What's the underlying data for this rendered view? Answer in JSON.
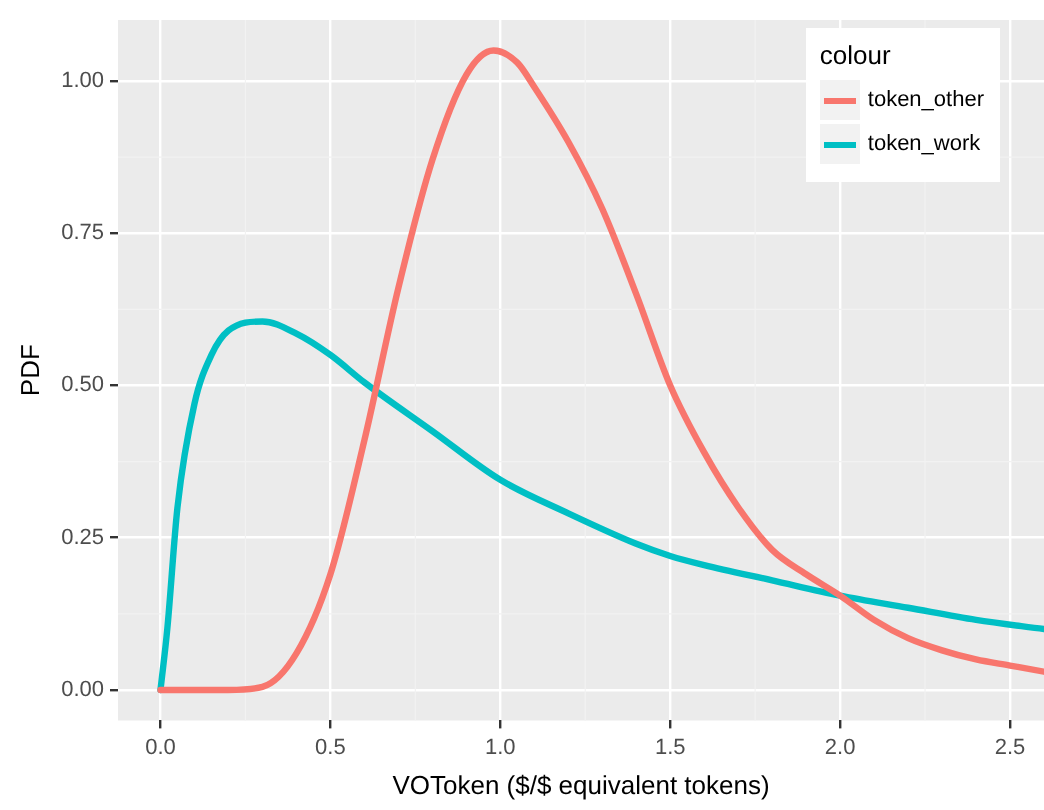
{
  "chart_data": {
    "type": "line",
    "xlabel": "VOToken ($/$ equivalent tokens)",
    "ylabel": "PDF",
    "legend_title": "colour",
    "legend": "top right",
    "grid": true,
    "marker": "none",
    "line_style": "solid",
    "xlim": [
      -0.125,
      2.6
    ],
    "ylim": [
      -0.05,
      1.1
    ],
    "xticks": [
      {
        "value": 0,
        "label": "0.0"
      },
      {
        "value": 0.5,
        "label": "0.5"
      },
      {
        "value": 1,
        "label": "1.0"
      },
      {
        "value": 1.5,
        "label": "1.5"
      },
      {
        "value": 2,
        "label": "2.0"
      },
      {
        "value": 2.5,
        "label": "2.5"
      }
    ],
    "yticks": [
      {
        "value": 0,
        "label": "0.00"
      },
      {
        "value": 0.25,
        "label": "0.25"
      },
      {
        "value": 0.5,
        "label": "0.50"
      },
      {
        "value": 0.75,
        "label": "0.75"
      },
      {
        "value": 1,
        "label": "1.00"
      }
    ],
    "series": [
      {
        "name": "token_other",
        "color": "#f8766d",
        "x": [
          0,
          0.2,
          0.3,
          0.4,
          0.5,
          0.6,
          0.7,
          0.8,
          0.9,
          0.98,
          1.05,
          1.1,
          1.2,
          1.3,
          1.4,
          1.5,
          1.6,
          1.7,
          1.8,
          1.9,
          2.0,
          2.1,
          2.2,
          2.3,
          2.4,
          2.5,
          2.6
        ],
        "values": [
          0,
          0,
          0.005,
          0.06,
          0.19,
          0.41,
          0.66,
          0.87,
          1.01,
          1.05,
          1.03,
          0.99,
          0.9,
          0.79,
          0.65,
          0.5,
          0.39,
          0.3,
          0.23,
          0.19,
          0.155,
          0.115,
          0.085,
          0.065,
          0.05,
          0.04,
          0.03
        ]
      },
      {
        "name": "token_work",
        "color": "#00bfc4",
        "x": [
          0,
          0.02,
          0.05,
          0.1,
          0.15,
          0.2,
          0.3,
          0.4,
          0.5,
          0.6,
          0.8,
          1.0,
          1.2,
          1.4,
          1.5,
          1.6,
          1.8,
          2.0,
          2.2,
          2.4,
          2.6
        ],
        "values": [
          0,
          0.1,
          0.3,
          0.47,
          0.55,
          0.59,
          0.605,
          0.585,
          0.55,
          0.505,
          0.425,
          0.345,
          0.29,
          0.24,
          0.22,
          0.205,
          0.18,
          0.155,
          0.135,
          0.115,
          0.1
        ]
      }
    ]
  }
}
